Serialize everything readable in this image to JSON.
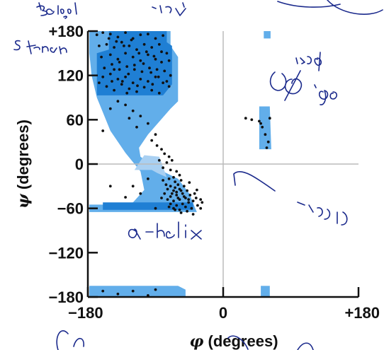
{
  "chart_data": {
    "type": "scatter",
    "title": "",
    "xlabel": {
      "symbol": "φ",
      "text": " (degrees)"
    },
    "ylabel": {
      "symbol": "ψ",
      "text": " (degrees)"
    },
    "xlim": [
      -180,
      180
    ],
    "ylim": [
      -180,
      180
    ],
    "xticks": [
      {
        "value": -180,
        "label": "−180"
      },
      {
        "value": 0,
        "label": "0"
      },
      {
        "value": 180,
        "label": "+180"
      }
    ],
    "yticks": [
      {
        "value": 180,
        "label": "+180"
      },
      {
        "value": 120,
        "label": "120"
      },
      {
        "value": 60,
        "label": "60"
      },
      {
        "value": 0,
        "label": "0"
      },
      {
        "value": -60,
        "label": "−60"
      },
      {
        "value": -120,
        "label": "−120"
      },
      {
        "value": -180,
        "label": "−180"
      }
    ],
    "zero_lines": true,
    "colors": {
      "allowed": "#62aeea",
      "favored": "#1f7fd4",
      "favored_light": "#a9d0f2",
      "point": "#111111",
      "zero_line": "#bbbbbb"
    },
    "regions": {
      "allowed": [
        [
          [
            -178,
            180
          ],
          [
            -70,
            180
          ],
          [
            -70,
            160
          ],
          [
            -60,
            145
          ],
          [
            -60,
            85
          ],
          [
            -70,
            75
          ],
          [
            -100,
            40
          ],
          [
            -112,
            22
          ],
          [
            -110,
            10
          ],
          [
            -90,
            -5
          ],
          [
            -60,
            -20
          ],
          [
            -45,
            -40
          ],
          [
            -38,
            -58
          ],
          [
            -35,
            -65
          ],
          [
            -178,
            -65
          ],
          [
            -178,
            -55
          ],
          [
            -145,
            -55
          ],
          [
            -120,
            -52
          ],
          [
            -105,
            -35
          ],
          [
            -110,
            -10
          ],
          [
            -130,
            15
          ],
          [
            -150,
            45
          ],
          [
            -160,
            70
          ],
          [
            -168,
            90
          ],
          [
            -175,
            120
          ],
          [
            -178,
            150
          ]
        ],
        [
          [
            48,
            78
          ],
          [
            62,
            78
          ],
          [
            64,
            20
          ],
          [
            48,
            20
          ]
        ],
        [
          [
            54,
            180
          ],
          [
            63,
            180
          ],
          [
            63,
            170
          ],
          [
            54,
            170
          ]
        ],
        [
          [
            -178,
            -180
          ],
          [
            -50,
            -180
          ],
          [
            -50,
            -170
          ],
          [
            -60,
            -165
          ],
          [
            -178,
            -165
          ]
        ],
        [
          [
            50,
            -165
          ],
          [
            62,
            -165
          ],
          [
            62,
            -180
          ],
          [
            50,
            -180
          ]
        ]
      ],
      "favored": [
        [
          [
            -152,
            180
          ],
          [
            -75,
            180
          ],
          [
            -75,
            165
          ],
          [
            -68,
            160
          ],
          [
            -68,
            108
          ],
          [
            -80,
            93
          ],
          [
            -168,
            93
          ],
          [
            -168,
            150
          ],
          [
            -152,
            155
          ]
        ],
        [
          [
            -160,
            -52
          ],
          [
            -40,
            -52
          ],
          [
            -40,
            -62
          ],
          [
            -160,
            -62
          ]
        ]
      ],
      "favored_light": [
        [
          [
            -118,
            -8
          ],
          [
            -95,
            -8
          ],
          [
            -88,
            -12
          ],
          [
            -75,
            -18
          ],
          [
            -85,
            10
          ],
          [
            -105,
            12
          ]
        ]
      ]
    },
    "points": [
      [
        -168,
        175
      ],
      [
        -160,
        178
      ],
      [
        -150,
        176
      ],
      [
        -140,
        172
      ],
      [
        -130,
        178
      ],
      [
        -120,
        170
      ],
      [
        -110,
        175
      ],
      [
        -100,
        176
      ],
      [
        -90,
        170
      ],
      [
        -80,
        174
      ],
      [
        -165,
        160
      ],
      [
        -155,
        162
      ],
      [
        -145,
        158
      ],
      [
        -135,
        165
      ],
      [
        -125,
        160
      ],
      [
        -115,
        155
      ],
      [
        -105,
        162
      ],
      [
        -95,
        158
      ],
      [
        -85,
        162
      ],
      [
        -75,
        150
      ],
      [
        -162,
        145
      ],
      [
        -150,
        148
      ],
      [
        -140,
        142
      ],
      [
        -130,
        150
      ],
      [
        -120,
        145
      ],
      [
        -110,
        140
      ],
      [
        -100,
        148
      ],
      [
        -90,
        142
      ],
      [
        -82,
        138
      ],
      [
        -72,
        140
      ],
      [
        -158,
        130
      ],
      [
        -148,
        135
      ],
      [
        -138,
        128
      ],
      [
        -128,
        132
      ],
      [
        -118,
        128
      ],
      [
        -108,
        125
      ],
      [
        -98,
        130
      ],
      [
        -88,
        128
      ],
      [
        -78,
        126
      ],
      [
        -70,
        120
      ],
      [
        -160,
        118
      ],
      [
        -150,
        122
      ],
      [
        -140,
        115
      ],
      [
        -130,
        118
      ],
      [
        -120,
        110
      ],
      [
        -110,
        115
      ],
      [
        -100,
        112
      ],
      [
        -90,
        118
      ],
      [
        -80,
        110
      ],
      [
        -72,
        105
      ],
      [
        -155,
        105
      ],
      [
        -145,
        100
      ],
      [
        -135,
        108
      ],
      [
        -125,
        102
      ],
      [
        -115,
        98
      ],
      [
        -105,
        104
      ],
      [
        -95,
        100
      ],
      [
        -85,
        96
      ],
      [
        -75,
        112
      ],
      [
        -165,
        110
      ],
      [
        -152,
        170
      ],
      [
        -142,
        166
      ],
      [
        -132,
        160
      ],
      [
        -122,
        168
      ],
      [
        -112,
        150
      ],
      [
        -102,
        152
      ],
      [
        -92,
        146
      ],
      [
        -82,
        152
      ],
      [
        -138,
        138
      ],
      [
        -118,
        134
      ],
      [
        -145,
        128
      ],
      [
        -126,
        122
      ],
      [
        -106,
        136
      ],
      [
        -96,
        124
      ],
      [
        -86,
        118
      ],
      [
        -134,
        112
      ],
      [
        -114,
        106
      ],
      [
        -94,
        108
      ],
      [
        -148,
        112
      ],
      [
        -128,
        96
      ],
      [
        -140,
        85
      ],
      [
        -130,
        80
      ],
      [
        -120,
        72
      ],
      [
        -110,
        65
      ],
      [
        -100,
        55
      ],
      [
        -125,
        62
      ],
      [
        -115,
        50
      ],
      [
        -90,
        40
      ],
      [
        -160,
        45
      ],
      [
        -150,
        75
      ],
      [
        -95,
        32
      ],
      [
        -88,
        25
      ],
      [
        -82,
        20
      ],
      [
        -78,
        14
      ],
      [
        -72,
        10
      ],
      [
        -85,
        5
      ],
      [
        -75,
        2
      ],
      [
        -68,
        5
      ],
      [
        -80,
        -5
      ],
      [
        -70,
        -8
      ],
      [
        -62,
        -10
      ],
      [
        -58,
        -15
      ],
      [
        -66,
        -18
      ],
      [
        -72,
        -20
      ],
      [
        -80,
        -22
      ],
      [
        -64,
        -24
      ],
      [
        -56,
        -22
      ],
      [
        -60,
        -28
      ],
      [
        -70,
        -30
      ],
      [
        -52,
        -30
      ],
      [
        -58,
        -34
      ],
      [
        -66,
        -36
      ],
      [
        -74,
        -34
      ],
      [
        -48,
        -36
      ],
      [
        -54,
        -40
      ],
      [
        -62,
        -42
      ],
      [
        -70,
        -44
      ],
      [
        -78,
        -40
      ],
      [
        -44,
        -42
      ],
      [
        -50,
        -46
      ],
      [
        -58,
        -48
      ],
      [
        -66,
        -50
      ],
      [
        -74,
        -48
      ],
      [
        -82,
        -46
      ],
      [
        -46,
        -52
      ],
      [
        -54,
        -54
      ],
      [
        -62,
        -56
      ],
      [
        -70,
        -54
      ],
      [
        -40,
        -50
      ],
      [
        -36,
        -46
      ],
      [
        -50,
        -58
      ],
      [
        -58,
        -62
      ],
      [
        -66,
        -60
      ],
      [
        -42,
        -60
      ],
      [
        -34,
        -56
      ],
      [
        -48,
        -64
      ],
      [
        -56,
        -66
      ],
      [
        -40,
        -68
      ],
      [
        -30,
        -60
      ],
      [
        -62,
        -38
      ],
      [
        -52,
        -44
      ],
      [
        -60,
        -46
      ],
      [
        -68,
        -40
      ],
      [
        -56,
        -36
      ],
      [
        -64,
        -32
      ],
      [
        -76,
        -28
      ],
      [
        -46,
        -48
      ],
      [
        -38,
        -40
      ],
      [
        -64,
        -62
      ],
      [
        -72,
        -58
      ],
      [
        -110,
        -40
      ],
      [
        -120,
        -30
      ],
      [
        -130,
        -45
      ],
      [
        -150,
        -30
      ],
      [
        -100,
        -20
      ],
      [
        -90,
        -60
      ],
      [
        -30,
        -48
      ],
      [
        -28,
        -52
      ],
      [
        -45,
        -25
      ],
      [
        -35,
        -35
      ],
      [
        30,
        62
      ],
      [
        38,
        60
      ],
      [
        48,
        58
      ],
      [
        52,
        50
      ],
      [
        56,
        40
      ],
      [
        60,
        30
      ],
      [
        58,
        22
      ],
      [
        50,
        55
      ],
      [
        62,
        62
      ],
      [
        -160,
        -172
      ],
      [
        -140,
        -176
      ],
      [
        -120,
        -172
      ],
      [
        -100,
        -178
      ],
      [
        -90,
        -170
      ]
    ]
  }
}
